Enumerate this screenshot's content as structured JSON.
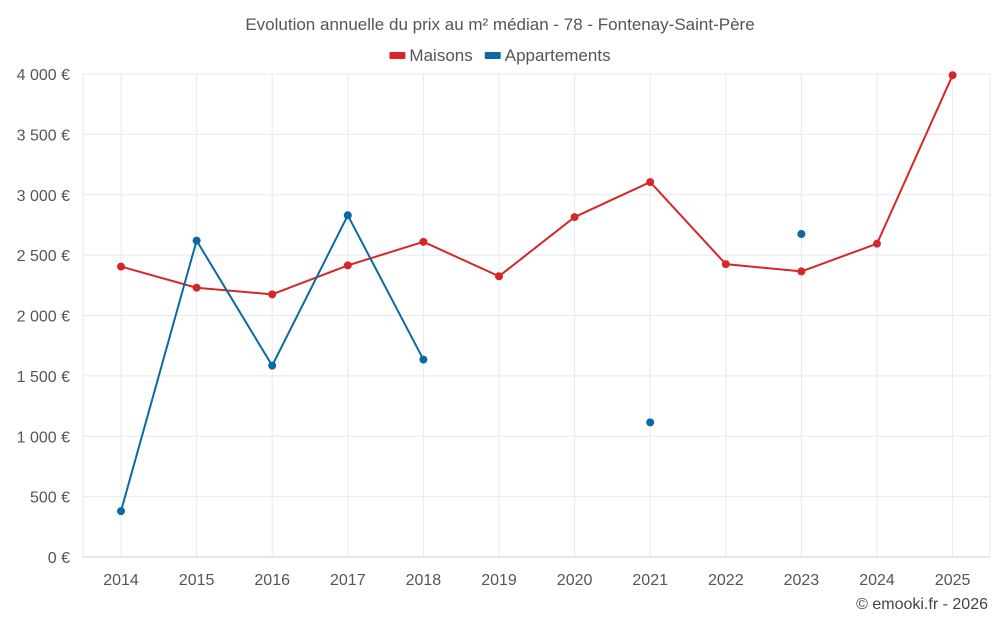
{
  "chart_data": {
    "type": "line",
    "title": "Evolution annuelle du prix au m² médian - 78 - Fontenay-Saint-Père",
    "categories": [
      "2014",
      "2015",
      "2016",
      "2017",
      "2018",
      "2019",
      "2020",
      "2021",
      "2022",
      "2023",
      "2024",
      "2025"
    ],
    "ylim": [
      0,
      4000
    ],
    "yticks": [
      0,
      500,
      1000,
      1500,
      2000,
      2500,
      3000,
      3500,
      4000
    ],
    "ytick_labels": [
      "0 €",
      "500 €",
      "1 000 €",
      "1 500 €",
      "2 000 €",
      "2 500 €",
      "3 000 €",
      "3 500 €",
      "4 000 €"
    ],
    "xlabel": "",
    "ylabel": "",
    "grid": true,
    "legend_position": "top-center",
    "series": [
      {
        "name": "Maisons",
        "color": "#d62728",
        "values": [
          2405,
          2230,
          2175,
          2415,
          2610,
          2325,
          2815,
          3105,
          2425,
          2365,
          2595,
          3990
        ]
      },
      {
        "name": "Appartements",
        "color": "#0a6aa1",
        "values": [
          380,
          2620,
          1585,
          2830,
          1635,
          null,
          null,
          1115,
          null,
          2675,
          null,
          null
        ]
      }
    ]
  },
  "credit": "© emooki.fr - 2026"
}
